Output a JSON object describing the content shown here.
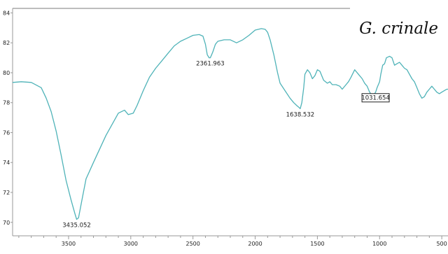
{
  "chart_data": {
    "type": "line",
    "title": "G. crinale",
    "xlabel": "",
    "ylabel": "",
    "x_reversed": true,
    "xlim": [
      3950,
      450
    ],
    "ylim": [
      69.1,
      84.3
    ],
    "xticks": [
      3500,
      3000,
      2500,
      2000,
      1500,
      1000,
      500
    ],
    "yticks": [
      70,
      72,
      74,
      76,
      78,
      80,
      82,
      84
    ],
    "grid": false,
    "colors": {
      "line": "#4fb3b8",
      "axes": "#999999",
      "frame": "#bdbdbd"
    },
    "series": [
      {
        "x": [
          3950,
          3880,
          3800,
          3720,
          3680,
          3640,
          3600,
          3560,
          3520,
          3480,
          3450,
          3435,
          3420,
          3390,
          3360,
          3300,
          3200,
          3100,
          3050,
          3020,
          2980,
          2950,
          2900,
          2850,
          2800,
          2750,
          2700,
          2650,
          2600,
          2550,
          2500,
          2450,
          2420,
          2400,
          2385,
          2370,
          2361,
          2350,
          2340,
          2320,
          2300,
          2250,
          2200,
          2150,
          2100,
          2050,
          2000,
          1950,
          1920,
          1900,
          1880,
          1850,
          1820,
          1800,
          1760,
          1720,
          1690,
          1665,
          1650,
          1638,
          1625,
          1610,
          1600,
          1580,
          1560,
          1540,
          1520,
          1500,
          1480,
          1450,
          1420,
          1400,
          1380,
          1350,
          1320,
          1300,
          1270,
          1250,
          1230,
          1200,
          1170,
          1140,
          1120,
          1100,
          1080,
          1060,
          1040,
          1032,
          1020,
          1000,
          990,
          975,
          960,
          945,
          920,
          900,
          880,
          860,
          840,
          820,
          800,
          780,
          760,
          740,
          720,
          700,
          680,
          660,
          640,
          620,
          600,
          580,
          560,
          540,
          520,
          500,
          480,
          460,
          450
        ],
        "y": [
          79.35,
          79.4,
          79.35,
          79.0,
          78.3,
          77.4,
          76.1,
          74.5,
          72.8,
          71.5,
          70.6,
          70.2,
          70.3,
          71.6,
          72.9,
          74.0,
          75.8,
          77.3,
          77.5,
          77.2,
          77.3,
          77.8,
          78.8,
          79.7,
          80.3,
          80.8,
          81.3,
          81.8,
          82.1,
          82.3,
          82.5,
          82.55,
          82.45,
          81.9,
          81.2,
          81.0,
          81.0,
          81.2,
          81.4,
          81.9,
          82.1,
          82.2,
          82.2,
          82.0,
          82.2,
          82.5,
          82.85,
          82.95,
          82.9,
          82.7,
          82.2,
          81.2,
          80.0,
          79.3,
          78.8,
          78.3,
          78.0,
          77.8,
          77.7,
          77.6,
          78.0,
          79.0,
          79.9,
          80.2,
          80.0,
          79.6,
          79.8,
          80.2,
          80.1,
          79.5,
          79.3,
          79.4,
          79.2,
          79.2,
          79.1,
          78.9,
          79.2,
          79.4,
          79.7,
          80.2,
          79.9,
          79.6,
          79.3,
          79.1,
          78.7,
          78.5,
          78.6,
          78.7,
          79.0,
          79.4,
          79.9,
          80.5,
          80.6,
          81.0,
          81.1,
          81.0,
          80.5,
          80.6,
          80.7,
          80.5,
          80.3,
          80.2,
          79.9,
          79.6,
          79.4,
          79.0,
          78.6,
          78.3,
          78.4,
          78.7,
          78.9,
          79.1,
          78.9,
          78.7,
          78.6,
          78.7,
          78.8,
          78.9,
          78.9
        ]
      }
    ],
    "annotations": [
      {
        "label": "3435.052",
        "x": 3435,
        "y": 70.2,
        "boxed": false
      },
      {
        "label": "2361.963",
        "x": 2361,
        "y": 81.0,
        "boxed": false
      },
      {
        "label": "1638.532",
        "x": 1638,
        "y": 77.6,
        "boxed": false
      },
      {
        "label": "1031.654",
        "x": 1032,
        "y": 78.7,
        "boxed": true
      }
    ]
  }
}
